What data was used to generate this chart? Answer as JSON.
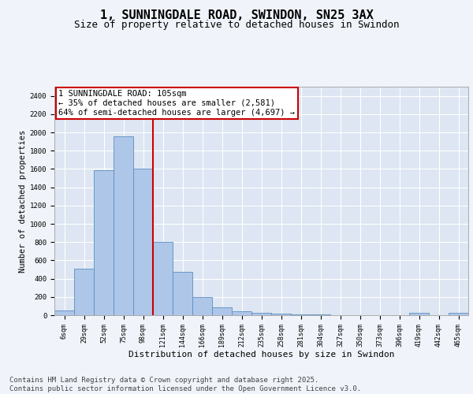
{
  "title": "1, SUNNINGDALE ROAD, SWINDON, SN25 3AX",
  "subtitle": "Size of property relative to detached houses in Swindon",
  "xlabel": "Distribution of detached houses by size in Swindon",
  "ylabel": "Number of detached properties",
  "bar_labels": [
    "6sqm",
    "29sqm",
    "52sqm",
    "75sqm",
    "98sqm",
    "121sqm",
    "144sqm",
    "166sqm",
    "189sqm",
    "212sqm",
    "235sqm",
    "258sqm",
    "281sqm",
    "304sqm",
    "327sqm",
    "350sqm",
    "373sqm",
    "396sqm",
    "419sqm",
    "442sqm",
    "465sqm"
  ],
  "bar_heights": [
    55,
    510,
    1590,
    1960,
    1600,
    800,
    470,
    195,
    90,
    40,
    30,
    15,
    10,
    5,
    0,
    0,
    0,
    0,
    25,
    0,
    25
  ],
  "bar_color": "#aec6e8",
  "bar_edge_color": "#5a8fc2",
  "background_color": "#dde6f2",
  "fig_background_color": "#f0f4fa",
  "grid_color": "#ffffff",
  "ylim": [
    0,
    2500
  ],
  "yticks": [
    0,
    200,
    400,
    600,
    800,
    1000,
    1200,
    1400,
    1600,
    1800,
    2000,
    2200,
    2400
  ],
  "vline_x_index": 4,
  "vline_color": "#cc0000",
  "annotation_text": "1 SUNNINGDALE ROAD: 105sqm\n← 35% of detached houses are smaller (2,581)\n64% of semi-detached houses are larger (4,697) →",
  "annotation_box_color": "#ffffff",
  "annotation_box_edge": "#cc0000",
  "footer": "Contains HM Land Registry data © Crown copyright and database right 2025.\nContains public sector information licensed under the Open Government Licence v3.0.",
  "title_fontsize": 11,
  "subtitle_fontsize": 9,
  "annotation_fontsize": 7.5,
  "footer_fontsize": 6.5,
  "tick_fontsize": 6,
  "ylabel_fontsize": 7.5,
  "xlabel_fontsize": 8
}
